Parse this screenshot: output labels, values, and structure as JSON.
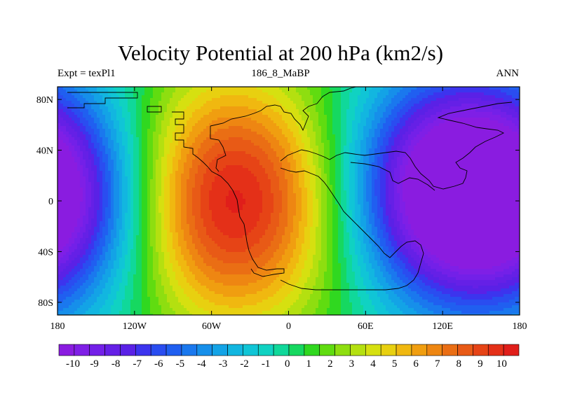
{
  "title": "Velocity Potential at 200 hPa (km2/s)",
  "subtitle_left": "Expt = texPl1",
  "subtitle_center": "186_8_MaBP",
  "subtitle_right": "ANN",
  "y_ticks": [
    "80N",
    "40N",
    "0",
    "40S",
    "80S"
  ],
  "x_ticks": [
    "180",
    "120W",
    "60W",
    "0",
    "60E",
    "120E",
    "180"
  ],
  "colorbar": {
    "labels": [
      "-10",
      "-9",
      "-8",
      "-7",
      "-6",
      "-5",
      "-4",
      "-3",
      "-2",
      "-1",
      "0",
      "1",
      "2",
      "3",
      "4",
      "5",
      "6",
      "7",
      "8",
      "9",
      "10"
    ],
    "colors": [
      "#8a1ce0",
      "#7f1fe6",
      "#7320e8",
      "#6520e6",
      "#5a21e6",
      "#3c34ee",
      "#2a4df0",
      "#205ff0",
      "#1a78ee",
      "#168fea",
      "#13a3e6",
      "#12b6e0",
      "#10c5d6",
      "#10d2c2",
      "#10d89a",
      "#16d860",
      "#30d820",
      "#60dc10",
      "#8ede10",
      "#b4e010",
      "#d6e010",
      "#e8d010",
      "#f0b810",
      "#f09e10",
      "#ee8612",
      "#ea6e14",
      "#e85a16",
      "#e64416",
      "#e43018",
      "#e01e1a"
    ]
  },
  "chart_data": {
    "type": "heatmap",
    "title": "Velocity Potential at 200 hPa (km2/s)",
    "units": "km2/s",
    "level": "200 hPa",
    "experiment": "texPl1",
    "period": "ANN",
    "x_range": [
      -180,
      180
    ],
    "y_range": [
      -90,
      90
    ],
    "contour_range": [
      -10,
      10
    ],
    "features": [
      {
        "kind": "maximum",
        "lon": -45,
        "lat": 0,
        "value": 10
      },
      {
        "kind": "minimum",
        "lon": 125,
        "lat": 10,
        "value": -10
      },
      {
        "kind": "minimum",
        "lon": -180,
        "lat": 0,
        "value": -7
      }
    ]
  }
}
